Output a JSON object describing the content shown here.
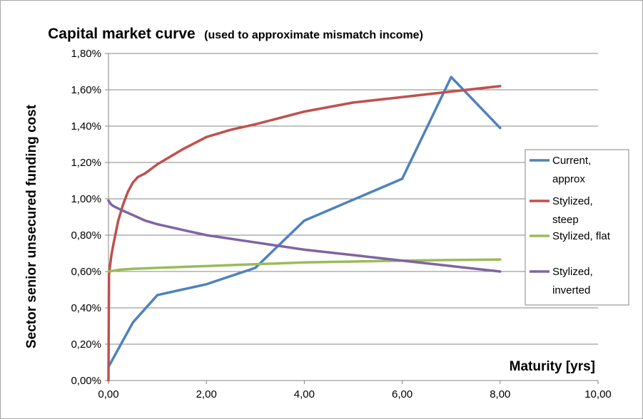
{
  "chart_data": {
    "type": "line",
    "title": "Capital market curve",
    "subtitle": "(used to approximate mismatch income)",
    "xlabel": "Maturity [yrs]",
    "ylabel": "Sector senior unsecured funding cost",
    "xlim": [
      0,
      10
    ],
    "ylim": [
      0,
      0.018
    ],
    "x_ticks": [
      0,
      2,
      4,
      6,
      8,
      10
    ],
    "x_tick_labels": [
      "0,00",
      "2,00",
      "4,00",
      "6,00",
      "8,00",
      "10,00"
    ],
    "y_ticks": [
      0,
      0.002,
      0.004,
      0.006,
      0.008,
      0.01,
      0.012,
      0.014,
      0.016,
      0.018
    ],
    "y_tick_labels": [
      "0,00%",
      "0,20%",
      "0,40%",
      "0,60%",
      "0,80%",
      "1,00%",
      "1,20%",
      "1,40%",
      "1,60%",
      "1,80%"
    ],
    "grid": "horizontal",
    "legend_position": "right",
    "series": [
      {
        "name_lines": [
          "Current,",
          "approx"
        ],
        "color": "#4f81bd",
        "points": [
          [
            0.01,
            0.0008
          ],
          [
            0.5,
            0.0032
          ],
          [
            1,
            0.0047
          ],
          [
            2,
            0.0053
          ],
          [
            3,
            0.0062
          ],
          [
            4,
            0.0088
          ],
          [
            6,
            0.0111
          ],
          [
            7,
            0.0167
          ],
          [
            8,
            0.0139
          ]
        ]
      },
      {
        "name_lines": [
          "Stylized,",
          "steep"
        ],
        "color": "#c0504d",
        "points": [
          [
            0,
            0
          ],
          [
            0.01,
            0.0058
          ],
          [
            0.03,
            0.0063
          ],
          [
            0.06,
            0.0069
          ],
          [
            0.1,
            0.0075
          ],
          [
            0.2,
            0.0088
          ],
          [
            0.3,
            0.0097
          ],
          [
            0.4,
            0.0104
          ],
          [
            0.5,
            0.0109
          ],
          [
            0.6,
            0.0112
          ],
          [
            0.75,
            0.0114
          ],
          [
            1,
            0.0119
          ],
          [
            1.5,
            0.0127
          ],
          [
            2,
            0.0134
          ],
          [
            2.5,
            0.0138
          ],
          [
            3,
            0.0141
          ],
          [
            4,
            0.0148
          ],
          [
            5,
            0.0153
          ],
          [
            6,
            0.0156
          ],
          [
            7,
            0.0159
          ],
          [
            8,
            0.0162
          ]
        ]
      },
      {
        "name_lines": [
          "Stylized, flat"
        ],
        "color": "#9bbb59",
        "points": [
          [
            0,
            0.006
          ],
          [
            0.25,
            0.0061
          ],
          [
            0.5,
            0.00615
          ],
          [
            1,
            0.0062
          ],
          [
            2,
            0.0063
          ],
          [
            3,
            0.0064
          ],
          [
            4,
            0.0065
          ],
          [
            5,
            0.00655
          ],
          [
            6,
            0.0066
          ],
          [
            7,
            0.00663
          ],
          [
            8,
            0.00666
          ]
        ]
      },
      {
        "name_lines": [
          "Stylized,",
          "inverted"
        ],
        "color": "#8064a2",
        "points": [
          [
            0,
            0.0099
          ],
          [
            0.05,
            0.0097
          ],
          [
            0.1,
            0.0096
          ],
          [
            0.25,
            0.0094
          ],
          [
            0.5,
            0.0091
          ],
          [
            0.75,
            0.0088
          ],
          [
            1,
            0.0086
          ],
          [
            1.5,
            0.0083
          ],
          [
            2,
            0.008
          ],
          [
            3,
            0.0076
          ],
          [
            4,
            0.0072
          ],
          [
            5,
            0.0069
          ],
          [
            6,
            0.0066
          ],
          [
            7,
            0.0063
          ],
          [
            8,
            0.006
          ]
        ]
      }
    ]
  }
}
